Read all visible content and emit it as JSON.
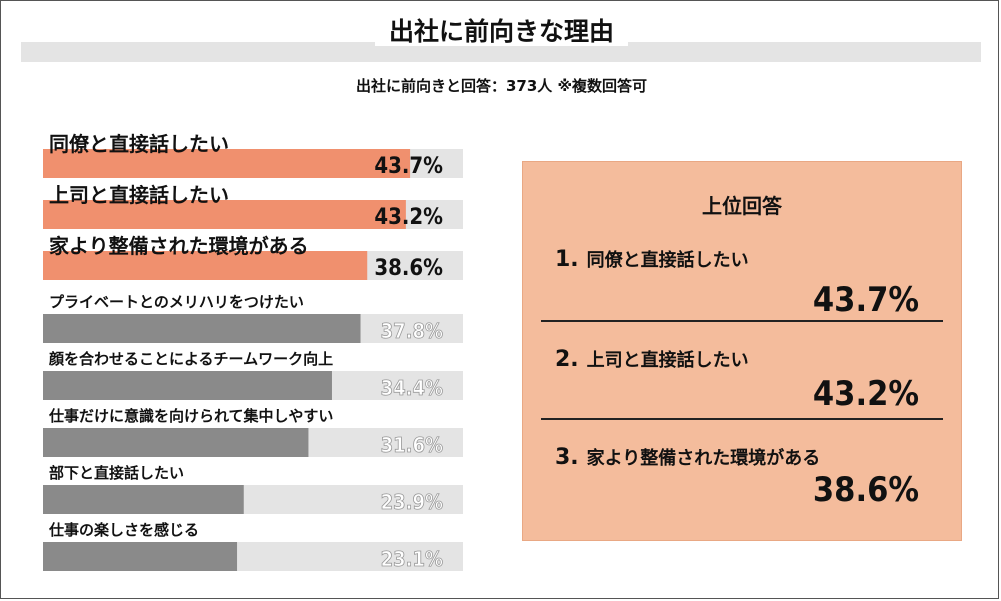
{
  "title": "出社に前向きな理由",
  "subtitle": "出社に前向きと回答：373人 ※複数回答可",
  "colors": {
    "highlight": "#f0906e",
    "normal": "#8a8a8a",
    "track": "#e4e4e4",
    "panel": "#f4bc9c"
  },
  "chart_data": {
    "type": "bar",
    "orientation": "horizontal",
    "categories": [
      "同僚と直接話したい",
      "上司と直接話したい",
      "家より整備された環境がある",
      "プライベートとのメリハリをつけたい",
      "顔を合わせることによるチームワーク向上",
      "仕事だけに意識を向けられて集中しやすい",
      "部下と直接話したい",
      "仕事の楽しさを感じる"
    ],
    "values": [
      43.7,
      43.2,
      38.6,
      37.8,
      34.4,
      31.6,
      23.9,
      23.1
    ],
    "value_labels": [
      "43.7%",
      "43.2%",
      "38.6%",
      "37.8%",
      "34.4%",
      "31.6%",
      "23.9%",
      "23.1%"
    ],
    "highlighted_count": 3,
    "xlim": [
      0,
      50
    ],
    "grid": false
  },
  "top_panel": {
    "title": "上位回答",
    "items": [
      {
        "rank": "1.",
        "label": "同僚と直接話したい",
        "value": "43.7%"
      },
      {
        "rank": "2.",
        "label": "上司と直接話したい",
        "value": "43.2%"
      },
      {
        "rank": "3.",
        "label": "家より整備された環境がある",
        "value": "38.6%"
      }
    ]
  }
}
